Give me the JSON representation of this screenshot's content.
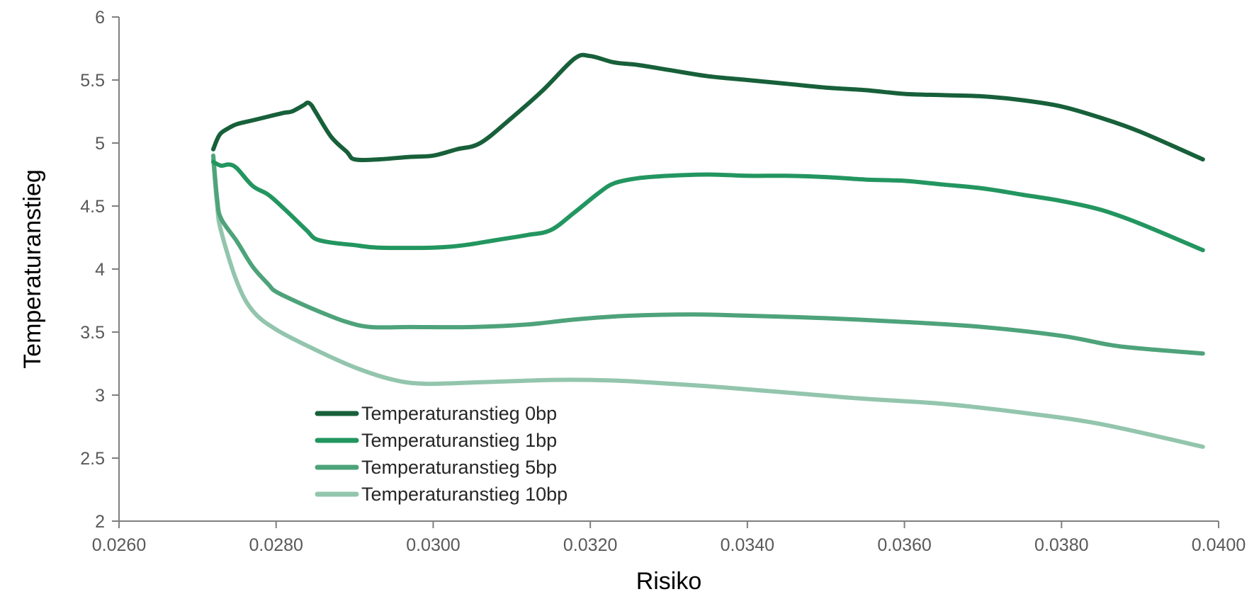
{
  "chart_data": {
    "type": "line",
    "title": "",
    "xlabel": "Risiko",
    "ylabel": "Temperaturanstieg",
    "xlim": [
      0.026,
      0.04
    ],
    "ylim": [
      2,
      6
    ],
    "x_ticks": [
      "0.0260",
      "0.0280",
      "0.0300",
      "0.0320",
      "0.0340",
      "0.0360",
      "0.0380",
      "0.0400"
    ],
    "y_ticks": [
      "2",
      "2.5",
      "3",
      "3.5",
      "4",
      "4.5",
      "5",
      "5.5",
      "6"
    ],
    "grid": false,
    "legend_position": "bottom-left",
    "series": [
      {
        "name": "Temperaturanstieg 0bp",
        "color": "#17603a",
        "points": [
          [
            0.0272,
            4.95
          ],
          [
            0.02725,
            5.03
          ],
          [
            0.0273,
            5.08
          ],
          [
            0.0274,
            5.12
          ],
          [
            0.0275,
            5.15
          ],
          [
            0.0277,
            5.18
          ],
          [
            0.0279,
            5.21
          ],
          [
            0.0281,
            5.24
          ],
          [
            0.0282,
            5.25
          ],
          [
            0.02835,
            5.3
          ],
          [
            0.0284,
            5.32
          ],
          [
            0.02845,
            5.3
          ],
          [
            0.0285,
            5.25
          ],
          [
            0.0287,
            5.05
          ],
          [
            0.0289,
            4.93
          ],
          [
            0.029,
            4.87
          ],
          [
            0.0293,
            4.87
          ],
          [
            0.0297,
            4.89
          ],
          [
            0.03,
            4.9
          ],
          [
            0.0303,
            4.95
          ],
          [
            0.0306,
            5.0
          ],
          [
            0.031,
            5.2
          ],
          [
            0.0314,
            5.42
          ],
          [
            0.0318,
            5.67
          ],
          [
            0.032,
            5.69
          ],
          [
            0.0323,
            5.64
          ],
          [
            0.0326,
            5.62
          ],
          [
            0.033,
            5.58
          ],
          [
            0.0335,
            5.53
          ],
          [
            0.034,
            5.5
          ],
          [
            0.0345,
            5.47
          ],
          [
            0.035,
            5.44
          ],
          [
            0.0355,
            5.42
          ],
          [
            0.036,
            5.39
          ],
          [
            0.0365,
            5.38
          ],
          [
            0.037,
            5.37
          ],
          [
            0.0375,
            5.34
          ],
          [
            0.038,
            5.29
          ],
          [
            0.0385,
            5.2
          ],
          [
            0.039,
            5.09
          ],
          [
            0.0398,
            4.87
          ]
        ]
      },
      {
        "name": "Temperaturanstieg 1bp",
        "color": "#239660",
        "points": [
          [
            0.0272,
            4.85
          ],
          [
            0.0273,
            4.82
          ],
          [
            0.0274,
            4.83
          ],
          [
            0.0275,
            4.8
          ],
          [
            0.0277,
            4.66
          ],
          [
            0.0279,
            4.59
          ],
          [
            0.0281,
            4.48
          ],
          [
            0.0283,
            4.36
          ],
          [
            0.0284,
            4.3
          ],
          [
            0.0285,
            4.24
          ],
          [
            0.0287,
            4.21
          ],
          [
            0.029,
            4.19
          ],
          [
            0.0293,
            4.17
          ],
          [
            0.03,
            4.17
          ],
          [
            0.0304,
            4.19
          ],
          [
            0.0308,
            4.23
          ],
          [
            0.0312,
            4.27
          ],
          [
            0.0315,
            4.31
          ],
          [
            0.0318,
            4.45
          ],
          [
            0.0321,
            4.6
          ],
          [
            0.0323,
            4.68
          ],
          [
            0.0326,
            4.72
          ],
          [
            0.033,
            4.74
          ],
          [
            0.0335,
            4.75
          ],
          [
            0.034,
            4.74
          ],
          [
            0.0345,
            4.74
          ],
          [
            0.035,
            4.73
          ],
          [
            0.0355,
            4.71
          ],
          [
            0.036,
            4.7
          ],
          [
            0.0365,
            4.67
          ],
          [
            0.037,
            4.64
          ],
          [
            0.0375,
            4.59
          ],
          [
            0.038,
            4.54
          ],
          [
            0.0385,
            4.47
          ],
          [
            0.039,
            4.36
          ],
          [
            0.0398,
            4.15
          ]
        ]
      },
      {
        "name": "Temperaturanstieg 5bp",
        "color": "#4ea37a",
        "points": [
          [
            0.0272,
            4.9
          ],
          [
            0.02725,
            4.55
          ],
          [
            0.0273,
            4.4
          ],
          [
            0.0275,
            4.22
          ],
          [
            0.0277,
            4.02
          ],
          [
            0.0279,
            3.88
          ],
          [
            0.028,
            3.82
          ],
          [
            0.0283,
            3.73
          ],
          [
            0.0286,
            3.65
          ],
          [
            0.0289,
            3.58
          ],
          [
            0.0292,
            3.54
          ],
          [
            0.0297,
            3.54
          ],
          [
            0.0305,
            3.54
          ],
          [
            0.0312,
            3.56
          ],
          [
            0.0318,
            3.6
          ],
          [
            0.0325,
            3.63
          ],
          [
            0.0333,
            3.64
          ],
          [
            0.034,
            3.63
          ],
          [
            0.035,
            3.61
          ],
          [
            0.036,
            3.58
          ],
          [
            0.037,
            3.54
          ],
          [
            0.038,
            3.47
          ],
          [
            0.0386,
            3.4
          ],
          [
            0.039,
            3.37
          ],
          [
            0.0398,
            3.33
          ]
        ]
      },
      {
        "name": "Temperaturanstieg 10bp",
        "color": "#93c5ad",
        "points": [
          [
            0.0272,
            4.87
          ],
          [
            0.02725,
            4.5
          ],
          [
            0.0273,
            4.3
          ],
          [
            0.0275,
            3.9
          ],
          [
            0.0277,
            3.67
          ],
          [
            0.028,
            3.52
          ],
          [
            0.0285,
            3.36
          ],
          [
            0.029,
            3.22
          ],
          [
            0.0295,
            3.12
          ],
          [
            0.0299,
            3.09
          ],
          [
            0.0305,
            3.1
          ],
          [
            0.031,
            3.11
          ],
          [
            0.0315,
            3.12
          ],
          [
            0.032,
            3.12
          ],
          [
            0.0325,
            3.11
          ],
          [
            0.0335,
            3.07
          ],
          [
            0.0345,
            3.02
          ],
          [
            0.0355,
            2.97
          ],
          [
            0.0365,
            2.93
          ],
          [
            0.0375,
            2.86
          ],
          [
            0.0385,
            2.77
          ],
          [
            0.0398,
            2.59
          ]
        ]
      }
    ]
  }
}
